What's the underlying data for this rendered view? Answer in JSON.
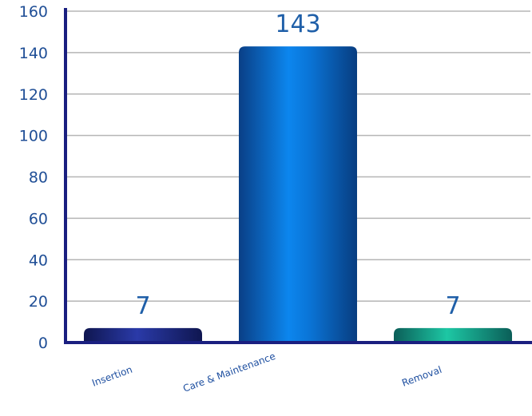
{
  "chart_data": {
    "type": "bar",
    "title": "",
    "xlabel": "",
    "ylabel": "",
    "categories": [
      "Insertion",
      "Care & Maintenance",
      "Removal"
    ],
    "values": [
      7,
      143,
      7
    ],
    "ylim": [
      0,
      160
    ],
    "yticks": [
      0,
      20,
      40,
      60,
      80,
      100,
      120,
      140,
      160
    ],
    "grid": true,
    "legend": "none",
    "bar_colors": [
      "#1c2a8a",
      "#0a78dc",
      "#12a88c"
    ],
    "axis_color": "#1a1f80",
    "grid_color": "#b5b5b5"
  }
}
